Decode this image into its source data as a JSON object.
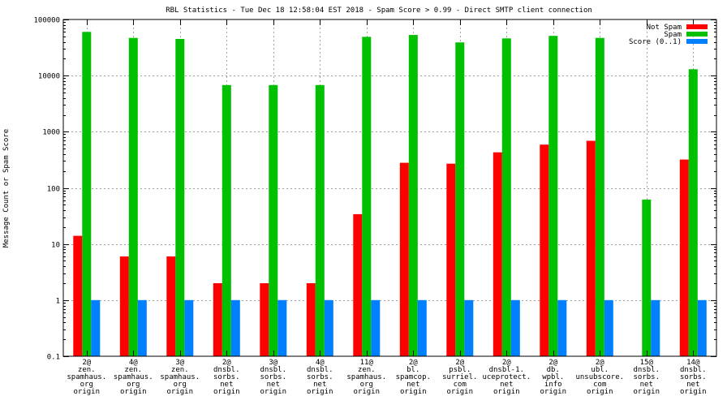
{
  "chart_data": {
    "type": "bar",
    "title": "RBL Statistics - Tue Dec 18 12:58:04 EST 2018 - Spam Score > 0.99 - Direct SMTP client connection",
    "xlabel": "",
    "ylabel": "Message Count or Spam Score",
    "y_scale": "log",
    "ylim": [
      0.1,
      100000
    ],
    "y_ticks": [
      0.1,
      1,
      10,
      100,
      1000,
      10000,
      100000
    ],
    "y_tick_labels": [
      "0.1",
      "1",
      "10",
      "100",
      "1000",
      "10000",
      "100000"
    ],
    "grid": true,
    "legend_position": "top-right",
    "categories": [
      [
        "2@",
        "zen.",
        "spamhaus.",
        "org",
        "origin"
      ],
      [
        "4@",
        "zen.",
        "spamhaus.",
        "org",
        "origin"
      ],
      [
        "3@",
        "zen.",
        "spamhaus.",
        "org",
        "origin"
      ],
      [
        "2@",
        "dnsbl.",
        "sorbs.",
        "net",
        "origin"
      ],
      [
        "3@",
        "dnsbl.",
        "sorbs.",
        "net",
        "origin"
      ],
      [
        "4@",
        "dnsbl.",
        "sorbs.",
        "net",
        "origin"
      ],
      [
        "11@",
        "zen.",
        "spamhaus.",
        "org",
        "origin"
      ],
      [
        "2@",
        "bl.",
        "spamcop.",
        "net",
        "origin"
      ],
      [
        "2@",
        "psbl.",
        "surriel.",
        "com",
        "origin"
      ],
      [
        "2@",
        "dnsbl-1.",
        "uceprotect.",
        "net",
        "origin"
      ],
      [
        "2@",
        "db.",
        "wpbl.",
        "info",
        "origin"
      ],
      [
        "2@",
        "ubl.",
        "unsubscore.",
        "com",
        "origin"
      ],
      [
        "15@",
        "dnsbl.",
        "sorbs.",
        "net",
        "origin"
      ],
      [
        "14@",
        "dnsbl.",
        "sorbs.",
        "net",
        "origin"
      ]
    ],
    "series": [
      {
        "name": "Not Spam",
        "color": "#ff0000",
        "values": [
          14,
          6,
          6,
          2,
          2,
          2,
          34,
          280,
          270,
          430,
          590,
          690,
          null,
          320
        ]
      },
      {
        "name": "Spam",
        "color": "#00c000",
        "values": [
          60000,
          47000,
          45000,
          6800,
          6800,
          6800,
          49000,
          53000,
          39000,
          46000,
          51000,
          47000,
          62,
          13000
        ]
      },
      {
        "name": "Score (0..1)",
        "color": "#0080ff",
        "values": [
          1,
          1,
          1,
          1,
          1,
          1,
          1,
          1,
          1,
          1,
          1,
          1,
          1,
          1
        ]
      }
    ]
  }
}
